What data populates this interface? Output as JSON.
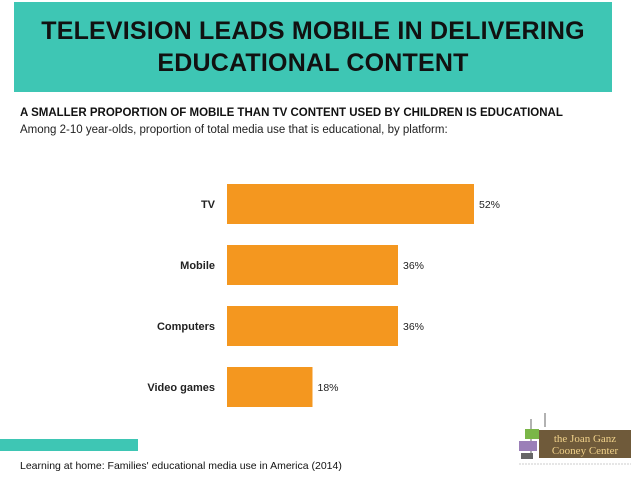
{
  "banner": {
    "line1": "TELEVISION LEADS MOBILE IN DELIVERING",
    "line2": "EDUCATIONAL CONTENT"
  },
  "subtitle": "A SMALLER PROPORTION OF MOBILE THAN TV CONTENT USED BY CHILDREN IS EDUCATIONAL",
  "description": "Among 2-10 year-olds, proportion of total media use that is educational, by platform:",
  "source": "Learning at home: Families' educational media use in America (2014)",
  "logo": {
    "line1": "the Joan Ganz",
    "line2": "Cooney Center"
  },
  "colors": {
    "accent": "#3ec6b4",
    "bar": "#f4971f"
  },
  "chart_data": {
    "type": "bar",
    "orientation": "horizontal",
    "categories": [
      "TV",
      "Mobile",
      "Computers",
      "Video games"
    ],
    "values": [
      52,
      36,
      36,
      18
    ],
    "value_labels": [
      "52%",
      "36%",
      "36%",
      "18%"
    ],
    "title": "",
    "xlabel": "",
    "ylabel": "",
    "xlim": [
      0,
      52
    ],
    "grid": false,
    "legend": "none"
  }
}
